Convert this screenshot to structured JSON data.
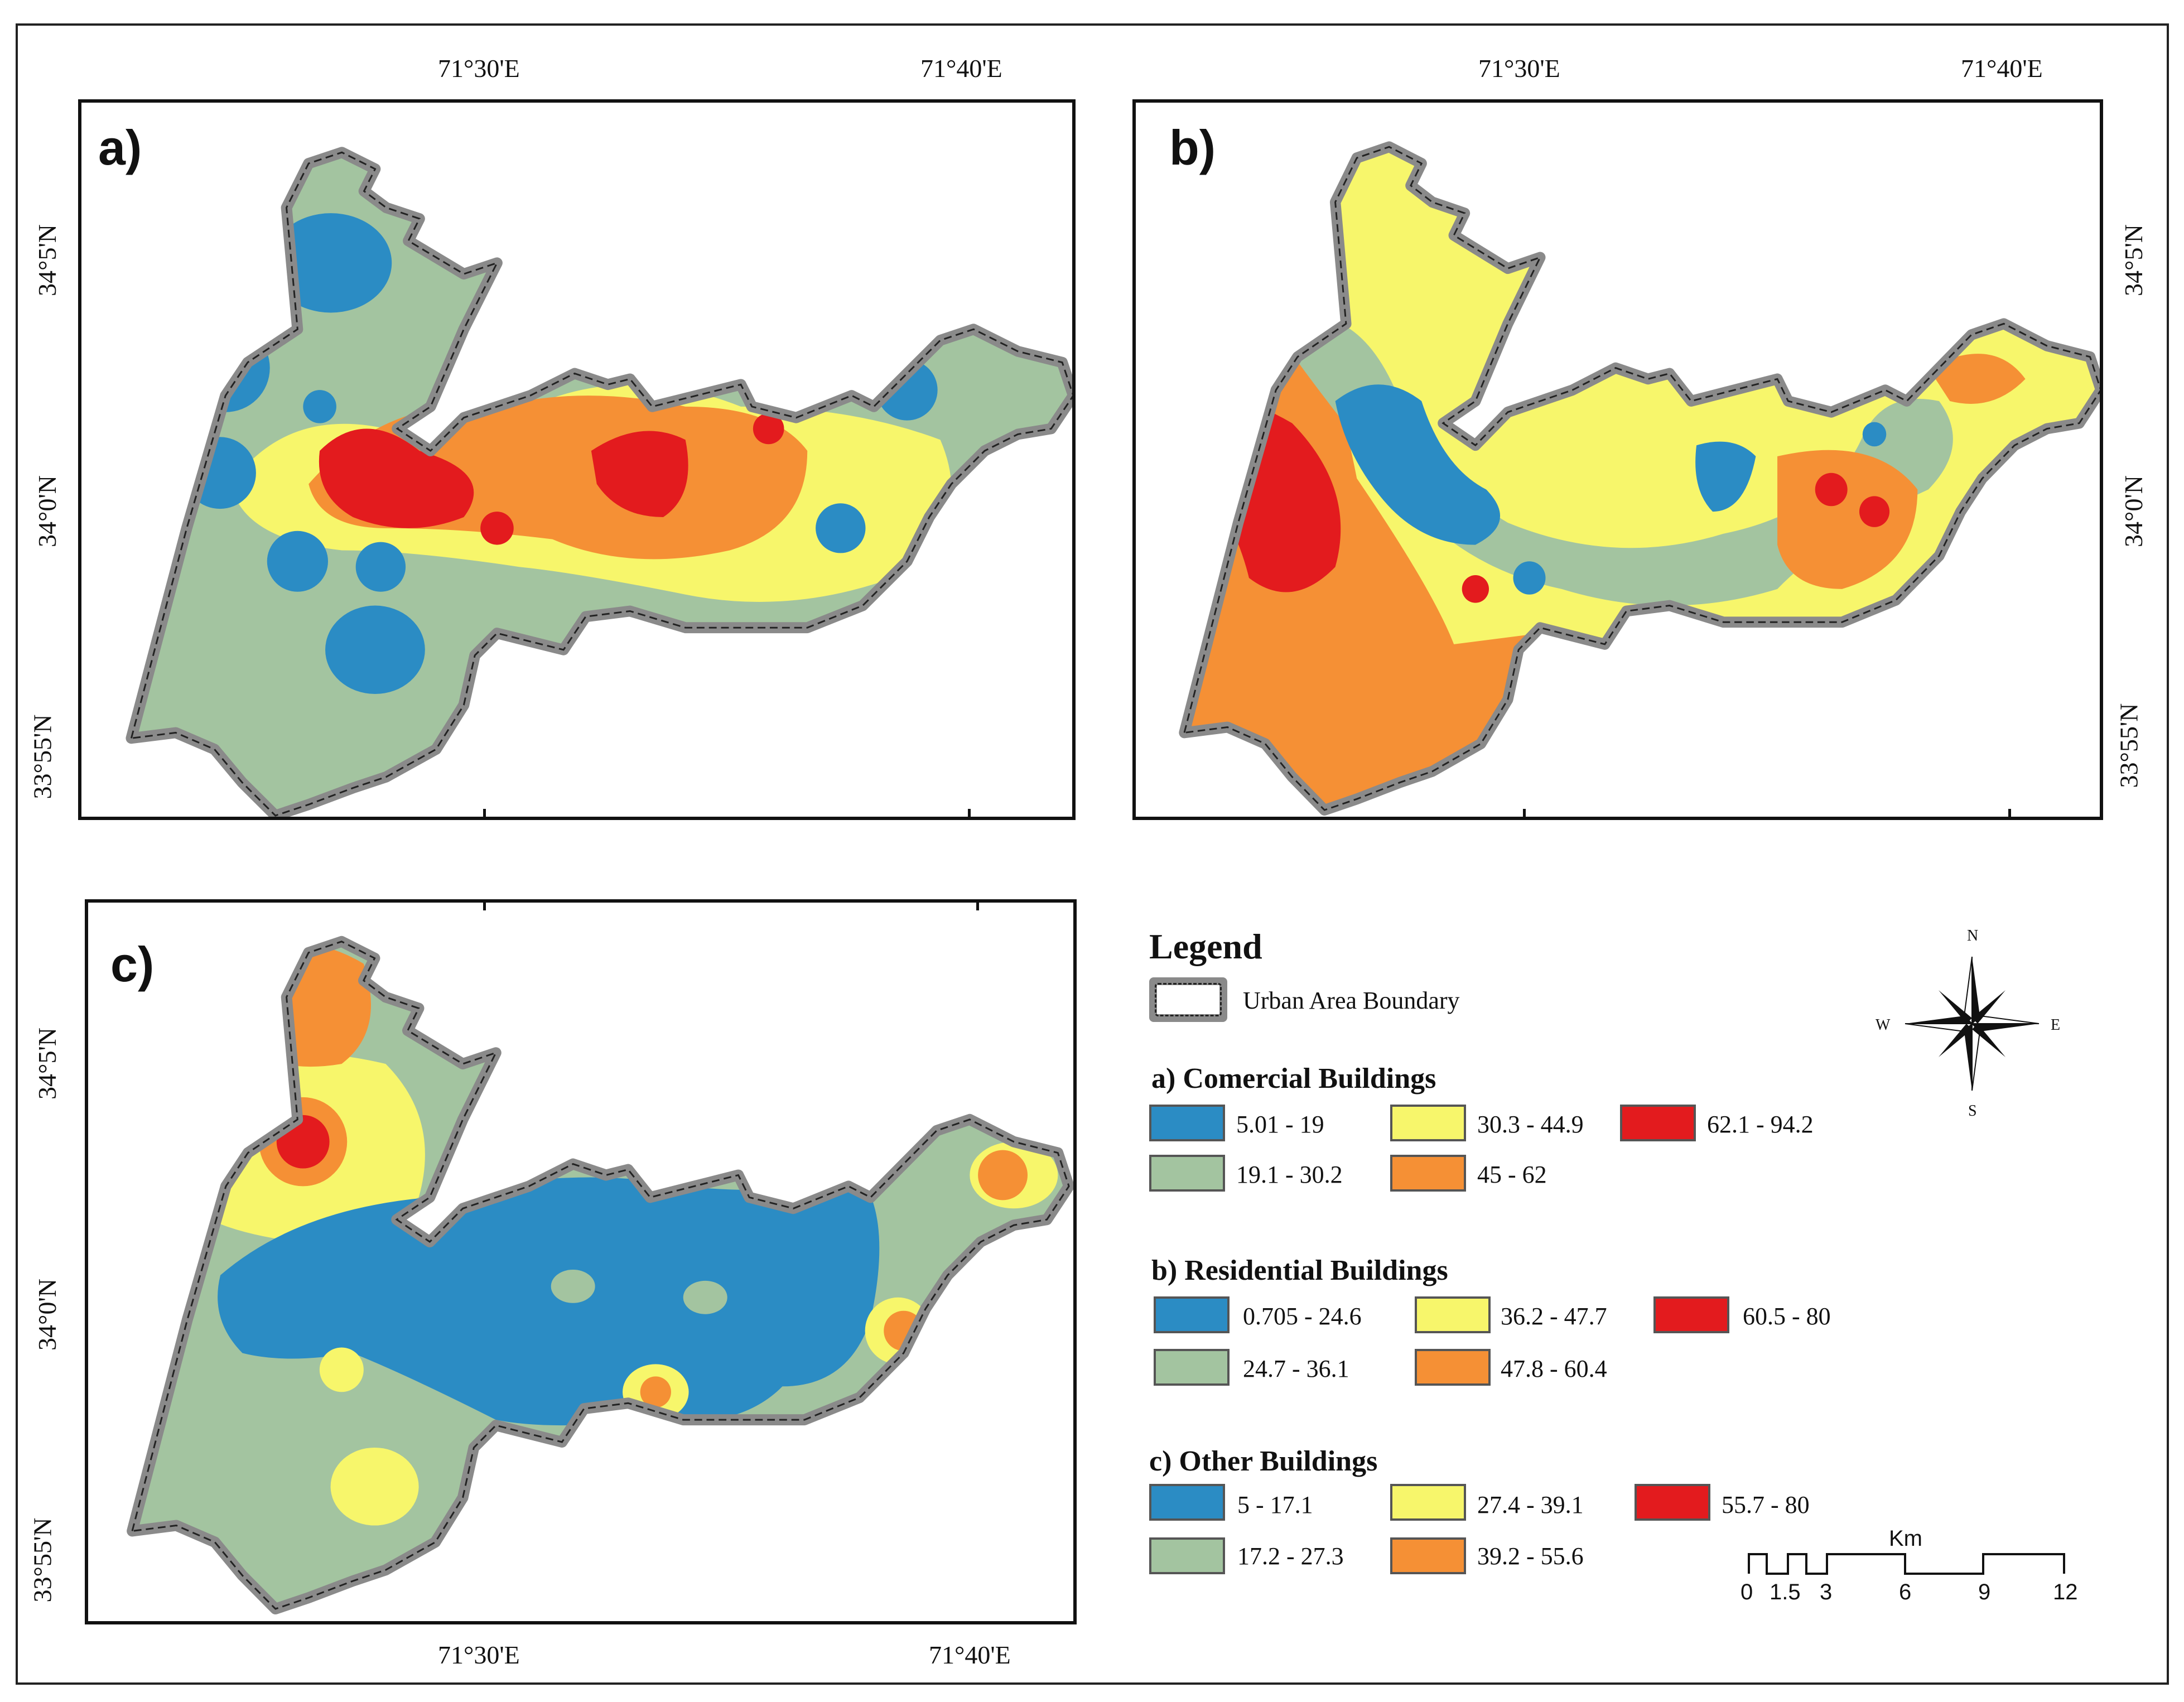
{
  "panels": {
    "a": {
      "label": "a)"
    },
    "b": {
      "label": "b)"
    },
    "c": {
      "label": "c)"
    }
  },
  "coordinates": {
    "lon_1": "71°30'E",
    "lon_2": "71°40'E",
    "lat_1": "34°5'N",
    "lat_2": "34°0'N",
    "lat_3": "33°55'N"
  },
  "legend": {
    "title": "Legend",
    "boundary_label": "Urban Area Boundary",
    "commercial": {
      "title": "a) Comercial Buildings",
      "classes": [
        {
          "range": "5.01 - 19",
          "color": "#2b8cc4"
        },
        {
          "range": "19.1 - 30.2",
          "color": "#a3c4a0"
        },
        {
          "range": "30.3 - 44.9",
          "color": "#f7f66b"
        },
        {
          "range": "45 - 62",
          "color": "#f59035"
        },
        {
          "range": "62.1 - 94.2",
          "color": "#e31b1e"
        }
      ]
    },
    "residential": {
      "title": "b) Residential Buildings",
      "classes": [
        {
          "range": "0.705 - 24.6",
          "color": "#2b8cc4"
        },
        {
          "range": "24.7 - 36.1",
          "color": "#a3c4a0"
        },
        {
          "range": "36.2 - 47.7",
          "color": "#f7f66b"
        },
        {
          "range": "47.8 - 60.4",
          "color": "#f59035"
        },
        {
          "range": "60.5 - 80",
          "color": "#e31b1e"
        }
      ]
    },
    "other": {
      "title": "c) Other Buildings",
      "classes": [
        {
          "range": "5 - 17.1",
          "color": "#2b8cc4"
        },
        {
          "range": "17.2 - 27.3",
          "color": "#a3c4a0"
        },
        {
          "range": "27.4 - 39.1",
          "color": "#f7f66b"
        },
        {
          "range": "39.2 - 55.6",
          "color": "#f59035"
        },
        {
          "range": "55.7 - 80",
          "color": "#e31b1e"
        }
      ]
    }
  },
  "compass": {
    "n": "N",
    "s": "S",
    "e": "E",
    "w": "W"
  },
  "scale_bar": {
    "unit": "Km",
    "ticks": [
      "0",
      "1.5",
      "3",
      "6",
      "9",
      "12"
    ]
  }
}
